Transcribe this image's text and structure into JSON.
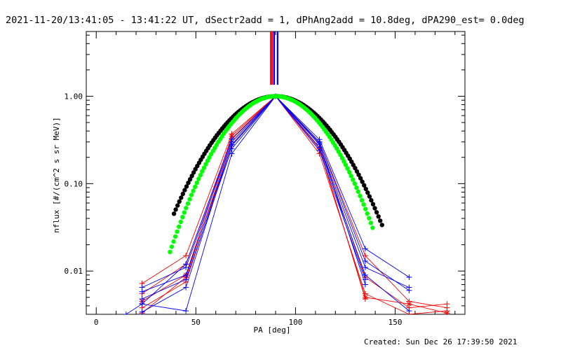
{
  "header": {
    "title": "2021-11-20/13:41:05 - 13:41:22 UT, dSectr2add = 1, dPhAng2add = 10.8deg, dPA290_est=  0.0deg"
  },
  "footer": {
    "created": "Created: Sun Dec 26 17:39:50 2021"
  },
  "chart_data": {
    "type": "scatter",
    "title": "2021-11-20/13:41:05 - 13:41:22 UT, dSectr2add = 1, dPhAng2add = 10.8deg, dPA290_est=  0.0deg",
    "xlabel": "PA [deg]",
    "ylabel": "nflux [#/(cm^2 s sr MeV)]",
    "xlim": [
      -5,
      185
    ],
    "ylim": [
      0.0032,
      5.5
    ],
    "yscale": "log",
    "xticks": [
      0,
      50,
      100,
      150
    ],
    "xtick_labels": [
      "0",
      "50",
      "100",
      "150"
    ],
    "yticks": [
      0.01,
      0.1,
      1.0
    ],
    "ytick_labels": [
      "0.01",
      "0.10",
      "1.00"
    ],
    "grid": false,
    "colors": {
      "red": "#ff0000",
      "blue": "#0000ff",
      "black": "#000000",
      "green": "#00ff00"
    },
    "vertical_markers": [
      {
        "name": "red",
        "color": "#ff0000",
        "x": 87.6
      },
      {
        "name": "red",
        "color": "#ff0000",
        "x": 88.4
      },
      {
        "name": "blue",
        "color": "#0000ff",
        "x": 89.3
      },
      {
        "name": "blue",
        "color": "#0000ff",
        "x": 91.0
      }
    ],
    "line_series": [
      {
        "color": "#ff0000",
        "marker": "+",
        "x": [
          23,
          45,
          68,
          90,
          112,
          135,
          157,
          176
        ],
        "y": [
          0.0072,
          0.015,
          0.37,
          1.0,
          0.3,
          0.015,
          0.0045,
          0.0038
        ]
      },
      {
        "color": "#ff0000",
        "marker": "+",
        "x": [
          23,
          45,
          68,
          90,
          112,
          135,
          157,
          176
        ],
        "y": [
          0.0055,
          0.012,
          0.33,
          1.0,
          0.28,
          0.0085,
          0.0038,
          0.0042
        ]
      },
      {
        "color": "#ff0000",
        "marker": "*",
        "x": [
          23,
          45,
          68,
          90,
          112,
          135,
          157,
          176
        ],
        "y": [
          0.0045,
          0.009,
          0.35,
          1.0,
          0.25,
          0.005,
          0.0042,
          0.0033
        ]
      },
      {
        "color": "#ff0000",
        "marker": "+",
        "x": [
          23,
          45,
          68,
          90,
          112,
          135,
          157,
          176
        ],
        "y": [
          0.0038,
          0.0075,
          0.28,
          1.0,
          0.22,
          0.0055,
          0.0032,
          0.0035
        ]
      },
      {
        "color": "#ff0000",
        "marker": "+",
        "x": [
          23,
          45,
          68,
          90,
          112,
          135
        ],
        "y": [
          0.0033,
          0.0085,
          0.3,
          1.0,
          0.26,
          0.0048
        ]
      },
      {
        "color": "#0000ff",
        "marker": "+",
        "x": [
          23,
          45,
          68,
          90,
          112,
          135,
          157
        ],
        "y": [
          0.0065,
          0.011,
          0.3,
          1.0,
          0.32,
          0.018,
          0.0085
        ]
      },
      {
        "color": "#0000ff",
        "marker": "+",
        "x": [
          23,
          45,
          68,
          90,
          112,
          135,
          157
        ],
        "y": [
          0.0058,
          0.009,
          0.27,
          1.0,
          0.3,
          0.013,
          0.006
        ]
      },
      {
        "color": "#0000ff",
        "marker": "+",
        "x": [
          23,
          45,
          68,
          90,
          112,
          135,
          157
        ],
        "y": [
          0.0048,
          0.008,
          0.25,
          1.0,
          0.28,
          0.011,
          0.0065
        ]
      },
      {
        "color": "#0000ff",
        "marker": "+",
        "x": [
          15,
          23,
          45,
          68,
          90,
          112,
          135,
          157
        ],
        "y": [
          0.0032,
          0.0042,
          0.0035,
          0.22,
          1.0,
          0.26,
          0.009,
          0.0035
        ]
      },
      {
        "color": "#0000ff",
        "marker": "+",
        "x": [
          23,
          45,
          68,
          90,
          112,
          135
        ],
        "y": [
          0.0042,
          0.012,
          0.32,
          1.0,
          0.24,
          0.008
        ]
      },
      {
        "color": "#0000ff",
        "marker": "+",
        "x": [
          23,
          45,
          68,
          90,
          112,
          135
        ],
        "y": [
          0.0034,
          0.0065,
          0.28,
          1.0,
          0.29,
          0.007
        ]
      }
    ],
    "black_fit": {
      "color": "#000000",
      "center": 90,
      "sigma": 20.5,
      "xmin": 39,
      "xmax": 144
    },
    "green_fit": {
      "color": "#00ff00",
      "center": 90,
      "sigma": 18.5,
      "xmin": 37,
      "xmax": 139
    }
  }
}
